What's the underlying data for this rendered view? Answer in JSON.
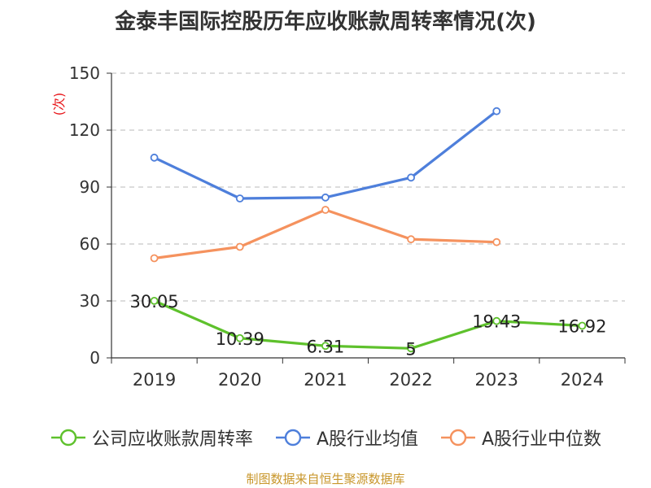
{
  "chart_data": {
    "type": "line",
    "title": "金泰丰国际控股历年应收账款周转率情况(次)",
    "ylabel": "(次)",
    "categories": [
      "2019",
      "2020",
      "2021",
      "2022",
      "2023",
      "2024"
    ],
    "ylim": [
      0,
      150
    ],
    "yticks": [
      "0",
      "30",
      "60",
      "90",
      "120",
      "150"
    ],
    "grid": "horizontal dashed",
    "legend_position": "bottom",
    "series": [
      {
        "name": "公司应收账款周转率",
        "color": "#5ec12c",
        "values": [
          30.05,
          10.39,
          6.31,
          5,
          19.43,
          16.92
        ],
        "labels": [
          "30.05",
          "10.39",
          "6.31",
          "5",
          "19.43",
          "16.92"
        ]
      },
      {
        "name": "A股行业均值",
        "color": "#4e7fdb",
        "values": [
          105.5,
          84,
          84.5,
          95,
          130,
          null
        ]
      },
      {
        "name": "A股行业中位数",
        "color": "#f5925e",
        "values": [
          52.5,
          58.5,
          78,
          62.5,
          61,
          null
        ]
      }
    ]
  },
  "footer": {
    "source": "制图数据来自恒生聚源数据库"
  }
}
